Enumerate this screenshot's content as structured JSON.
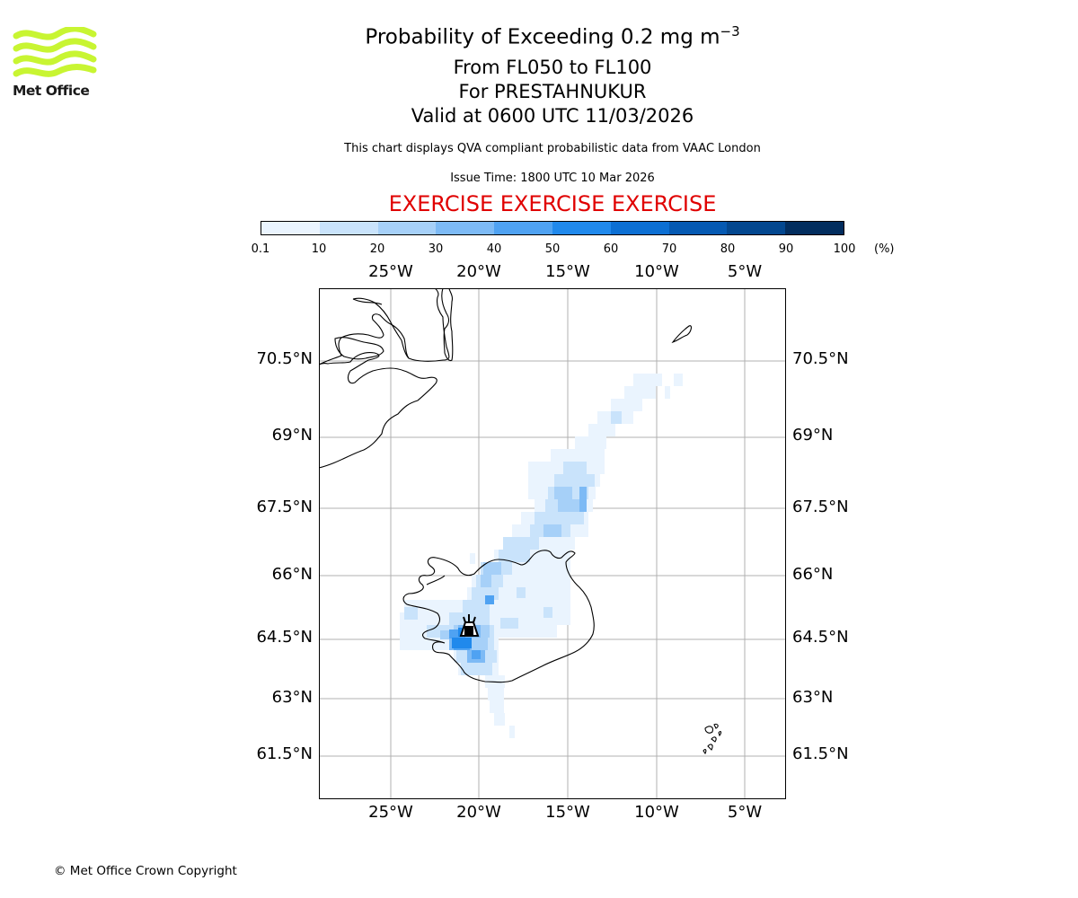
{
  "logo": {
    "text": "Met Office",
    "color": "#c8f532"
  },
  "title": {
    "line1": "Probability of Exceeding 0.2 mg m",
    "line1_sup": "−3",
    "line2": "From FL050 to FL100",
    "line3": "For PRESTAHNUKUR",
    "line4": "Valid at 0600 UTC 11/03/2026"
  },
  "subtitle": "This chart displays QVA compliant probabilistic data from VAAC London",
  "issue_time": "Issue Time: 1800 UTC 10 Mar 2026",
  "exercise_banner": "EXERCISE EXERCISE EXERCISE",
  "colorbar": {
    "unit": "(%)",
    "ticks": [
      "0.1",
      "10",
      "20",
      "30",
      "40",
      "50",
      "60",
      "70",
      "80",
      "90",
      "100"
    ],
    "colors": [
      "#eaf4fe",
      "#c9e3fb",
      "#a6d0f8",
      "#7dbaf5",
      "#4fa2f2",
      "#2089ec",
      "#0c6fd3",
      "#0559b2",
      "#03478f",
      "#022d5e"
    ]
  },
  "map": {
    "lon_labels": [
      "25°W",
      "20°W",
      "15°W",
      "10°W",
      "5°W"
    ],
    "lat_labels": [
      "70.5°N",
      "69°N",
      "67.5°N",
      "66°N",
      "64.5°N",
      "63°N",
      "61.5°N"
    ]
  },
  "copyright": "© Met Office Crown Copyright"
}
